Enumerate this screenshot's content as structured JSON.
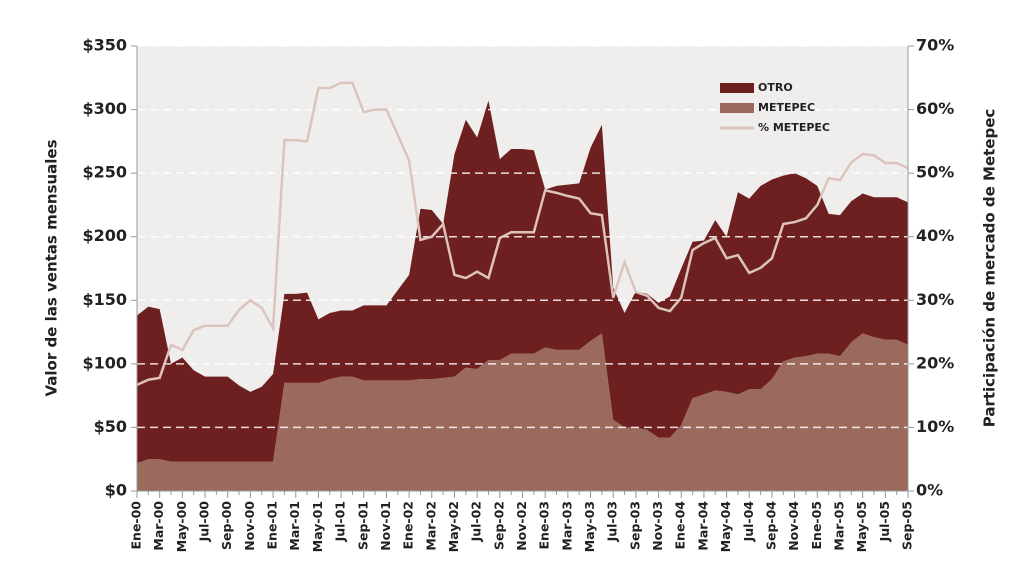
{
  "chart_data": {
    "type": "stacked-area",
    "y_label": "Valor de las ventas mensuales",
    "y2_label": "Participación de mercado de Metepec",
    "categories": [
      "Ene-00",
      null,
      "Mar-00",
      null,
      "May-00",
      null,
      "Jul-00",
      null,
      "Sep-00",
      null,
      "Nov-00",
      null,
      "Ene-01",
      null,
      "Mar-01",
      null,
      "May-01",
      null,
      "Jul-01",
      null,
      "Sep-01",
      null,
      "Nov-01",
      null,
      "Ene-02",
      null,
      "Mar-02",
      null,
      "May-02",
      null,
      "Jul-02",
      null,
      "Sep-02",
      null,
      "Nov-02",
      null,
      "Ene-03",
      null,
      "Mar-03",
      null,
      "May-03",
      null,
      "Jul-03",
      null,
      "Sep-03",
      null,
      "Nov-03",
      null,
      "Ene-04",
      null,
      "Mar-04",
      null,
      "May-04",
      null,
      "Jul-04",
      null,
      "Sep-04",
      null,
      "Nov-04",
      null,
      "Ene-05",
      null,
      "Mar-05",
      null,
      "May-05",
      null,
      "Jul-05",
      null,
      "Sep-05"
    ],
    "series": [
      {
        "name": "OTRO",
        "color": "#6e1f1f",
        "kind": "area",
        "values": [
          116,
          120,
          118,
          77,
          82,
          72,
          67,
          67,
          67,
          60,
          55,
          59,
          69,
          70,
          70,
          71,
          50,
          52,
          52,
          52,
          59,
          59,
          59,
          71,
          83,
          134,
          133,
          121,
          175,
          195,
          182,
          204,
          158,
          161,
          161,
          160,
          124,
          129,
          130,
          131,
          152,
          164,
          104,
          90,
          107,
          107,
          106,
          111,
          123,
          123,
          121,
          134,
          122,
          159,
          150,
          160,
          157,
          146,
          145,
          140,
          132,
          110,
          111,
          111,
          110,
          110,
          112,
          112,
          112
        ]
      },
      {
        "name": "METEPEC",
        "color": "#9c6a5c",
        "kind": "area",
        "values": [
          22,
          25,
          25,
          23,
          23,
          23,
          23,
          23,
          23,
          23,
          23,
          23,
          23,
          85,
          85,
          85,
          85,
          88,
          90,
          90,
          87,
          87,
          87,
          87,
          87,
          88,
          88,
          89,
          90,
          97,
          96,
          103,
          103,
          108,
          108,
          108,
          113,
          111,
          111,
          111,
          118,
          124,
          56,
          50,
          50,
          48,
          42,
          42,
          52,
          73,
          76,
          79,
          78,
          76,
          80,
          80,
          88,
          102,
          105,
          106,
          108,
          108,
          106,
          117,
          124,
          121,
          119,
          119,
          115
        ]
      },
      {
        "name": "% METEPEC",
        "color": "#dcc4bd",
        "kind": "line",
        "axis": "y2",
        "values": [
          16.7,
          17.5,
          17.8,
          23,
          22.2,
          25.3,
          26,
          26,
          26,
          28.5,
          30,
          28.8,
          25.6,
          55.2,
          55.2,
          55,
          63.4,
          63.4,
          64.2,
          64.2,
          59.6,
          60,
          60,
          56,
          52,
          39.5,
          40,
          42,
          34,
          33.5,
          34.5,
          33.5,
          39.8,
          40.7,
          40.7,
          40.7,
          47.3,
          46.9,
          46.4,
          46,
          43.7,
          43.4,
          30.4,
          36,
          31.3,
          30.7,
          28.8,
          28.3,
          30.4,
          37.9,
          39,
          39.8,
          36.6,
          37.1,
          34.3,
          35.1,
          36.6,
          42,
          42.3,
          42.9,
          45,
          49.2,
          48.9,
          51.7,
          53,
          52.8,
          51.6,
          51.6,
          50.8
        ]
      }
    ],
    "stack_order": [
      1,
      0
    ],
    "ylim": [
      0,
      350
    ],
    "yticks": [
      {
        "value": 0,
        "label": "$0"
      },
      {
        "value": 50,
        "label": "$50"
      },
      {
        "value": 100,
        "label": "$100"
      },
      {
        "value": 150,
        "label": "$150"
      },
      {
        "value": 200,
        "label": "$200"
      },
      {
        "value": 250,
        "label": "$250"
      },
      {
        "value": 300,
        "label": "$300"
      },
      {
        "value": 350,
        "label": "$350"
      }
    ],
    "y2lim": [
      0,
      70
    ],
    "y2ticks": [
      {
        "value": 0,
        "label": "0%"
      },
      {
        "value": 10,
        "label": "10%"
      },
      {
        "value": 20,
        "label": "20%"
      },
      {
        "value": 30,
        "label": "30%"
      },
      {
        "value": 40,
        "label": "40%"
      },
      {
        "value": 50,
        "label": "50%"
      },
      {
        "value": 60,
        "label": "60%"
      },
      {
        "value": 70,
        "label": "70%"
      }
    ],
    "grid": true,
    "legend": "top-right",
    "background": "#f0eeed"
  }
}
